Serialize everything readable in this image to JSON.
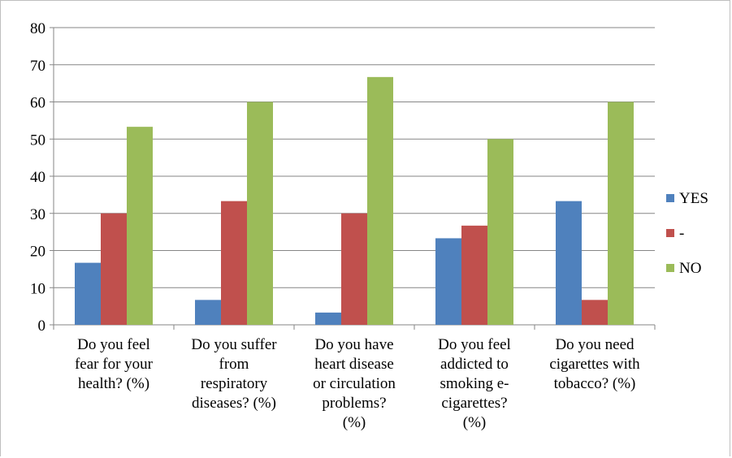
{
  "chart_data": {
    "type": "bar",
    "categories": [
      "Do you feel fear for your health? (%)",
      "Do you suffer from respiratory diseases? (%)",
      "Do you have heart disease or circulation problems? (%)",
      "Do you feel addicted to smoking e-cigarettes? (%)",
      "Do you need cigarettes with tobacco? (%)"
    ],
    "category_lines": [
      [
        "Do you feel",
        "fear for your",
        "health? (%)"
      ],
      [
        "Do you suffer",
        "from",
        "respiratory",
        "diseases? (%)"
      ],
      [
        "Do you have",
        "heart disease",
        "or circulation",
        "problems?",
        "(%)"
      ],
      [
        "Do you feel",
        "addicted to",
        "smoking e-",
        "cigarettes?",
        "(%)"
      ],
      [
        "Do you need",
        "cigarettes with",
        "tobacco? (%)"
      ]
    ],
    "series": [
      {
        "name": "YES",
        "color": "#4f81bd",
        "values": [
          16.7,
          6.7,
          3.3,
          23.3,
          33.3
        ]
      },
      {
        "name": "-",
        "color": "#c0504d",
        "values": [
          30,
          33.3,
          30,
          26.7,
          6.7
        ]
      },
      {
        "name": "NO",
        "color": "#9bbb59",
        "values": [
          53.3,
          60,
          66.7,
          50,
          60
        ]
      }
    ],
    "ylim": [
      0,
      80
    ],
    "yticks": [
      0,
      10,
      20,
      30,
      40,
      50,
      60,
      70,
      80
    ],
    "grid": true,
    "legend": "right"
  }
}
